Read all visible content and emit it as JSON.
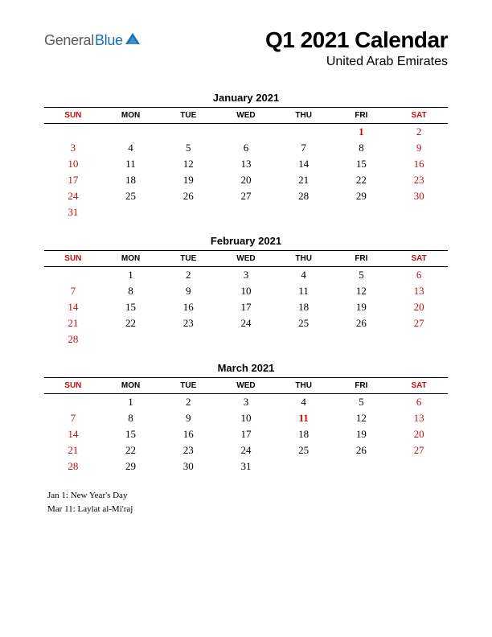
{
  "logo": {
    "word1": "General",
    "word2": "Blue",
    "triangle_color": "#1a6fb0"
  },
  "title": "Q1 2021 Calendar",
  "subtitle": "United Arab Emirates",
  "day_headers": [
    "SUN",
    "MON",
    "TUE",
    "WED",
    "THU",
    "FRI",
    "SAT"
  ],
  "weekend_cols": [
    0,
    6
  ],
  "colors": {
    "weekend": "#c01010",
    "holiday": "#c01010",
    "text": "#000000",
    "rule": "#000000",
    "background": "#ffffff"
  },
  "months": [
    {
      "title": "January 2021",
      "weeks": [
        [
          "",
          "",
          "",
          "",
          "",
          "1",
          "2"
        ],
        [
          "3",
          "4",
          "5",
          "6",
          "7",
          "8",
          "9"
        ],
        [
          "10",
          "11",
          "12",
          "13",
          "14",
          "15",
          "16"
        ],
        [
          "17",
          "18",
          "19",
          "20",
          "21",
          "22",
          "23"
        ],
        [
          "24",
          "25",
          "26",
          "27",
          "28",
          "29",
          "30"
        ],
        [
          "31",
          "",
          "",
          "",
          "",
          "",
          ""
        ]
      ],
      "holidays": [
        [
          0,
          5
        ]
      ]
    },
    {
      "title": "February 2021",
      "weeks": [
        [
          "",
          "1",
          "2",
          "3",
          "4",
          "5",
          "6"
        ],
        [
          "7",
          "8",
          "9",
          "10",
          "11",
          "12",
          "13"
        ],
        [
          "14",
          "15",
          "16",
          "17",
          "18",
          "19",
          "20"
        ],
        [
          "21",
          "22",
          "23",
          "24",
          "25",
          "26",
          "27"
        ],
        [
          "28",
          "",
          "",
          "",
          "",
          "",
          ""
        ]
      ],
      "holidays": []
    },
    {
      "title": "March 2021",
      "weeks": [
        [
          "",
          "1",
          "2",
          "3",
          "4",
          "5",
          "6"
        ],
        [
          "7",
          "8",
          "9",
          "10",
          "11",
          "12",
          "13"
        ],
        [
          "14",
          "15",
          "16",
          "17",
          "18",
          "19",
          "20"
        ],
        [
          "21",
          "22",
          "23",
          "24",
          "25",
          "26",
          "27"
        ],
        [
          "28",
          "29",
          "30",
          "31",
          "",
          "",
          ""
        ]
      ],
      "holidays": [
        [
          1,
          4
        ]
      ]
    }
  ],
  "holiday_list": [
    "Jan 1: New Year's Day",
    "Mar 11: Laylat al-Mi'raj"
  ]
}
